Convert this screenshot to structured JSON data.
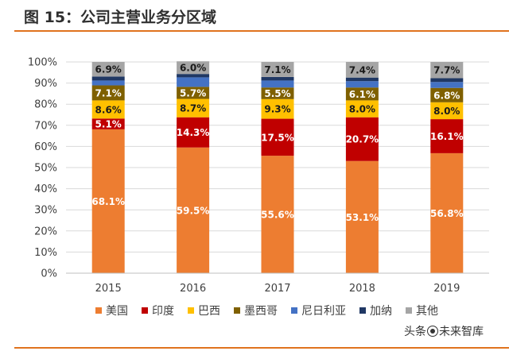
{
  "header": {
    "title": "图 15：公司主营业务分区域"
  },
  "watermark": {
    "prefix": "头条",
    "suffix": "未来智库"
  },
  "chart_data": {
    "type": "bar",
    "stacked": true,
    "categories": [
      "2015",
      "2016",
      "2017",
      "2018",
      "2019"
    ],
    "ylim": [
      0,
      100
    ],
    "yticks": [
      "0%",
      "10%",
      "20%",
      "30%",
      "40%",
      "50%",
      "60%",
      "70%",
      "80%",
      "90%",
      "100%"
    ],
    "grid": true,
    "legend_position": "bottom",
    "series": [
      {
        "name": "美国",
        "color": "#ed7d31",
        "values": [
          68.1,
          59.5,
          55.6,
          53.1,
          56.8
        ],
        "labels": [
          "68.1%",
          "59.5%",
          "55.6%",
          "53.1%",
          "56.8%"
        ],
        "label_color": "#ffffff"
      },
      {
        "name": "印度",
        "color": "#c00000",
        "values": [
          5.1,
          14.3,
          17.5,
          20.7,
          16.1
        ],
        "labels": [
          "5.1%",
          "14.3%",
          "17.5%",
          "20.7%",
          "16.1%"
        ],
        "label_color": "#ffffff"
      },
      {
        "name": "巴西",
        "color": "#ffc000",
        "values": [
          8.6,
          8.7,
          9.3,
          8.0,
          8.0
        ],
        "labels": [
          "8.6%",
          "8.7%",
          "9.3%",
          "8.0%",
          "8.0%"
        ],
        "label_color": "#1a1a1a"
      },
      {
        "name": "墨西哥",
        "color": "#7f6000",
        "values": [
          7.1,
          5.7,
          5.5,
          6.1,
          6.8
        ],
        "labels": [
          "7.1%",
          "5.7%",
          "5.5%",
          "6.1%",
          "6.8%"
        ],
        "label_color": "#ffffff"
      },
      {
        "name": "尼日利亚",
        "color": "#4472c4",
        "values": [
          2.3,
          4.5,
          3.3,
          3.0,
          2.8
        ],
        "labels": [
          "",
          "",
          "",
          "",
          ""
        ],
        "label_color": "#ffffff"
      },
      {
        "name": "加纳",
        "color": "#203864",
        "values": [
          1.9,
          1.6,
          1.7,
          1.7,
          1.8
        ],
        "labels": [
          "",
          "",
          "",
          "",
          ""
        ],
        "label_color": "#ffffff"
      },
      {
        "name": "其他",
        "color": "#a5a5a5",
        "values": [
          6.9,
          6.0,
          7.1,
          7.4,
          7.7
        ],
        "labels": [
          "6.9%",
          "6.0%",
          "7.1%",
          "7.4%",
          "7.7%"
        ],
        "label_color": "#1a1a1a"
      }
    ]
  }
}
